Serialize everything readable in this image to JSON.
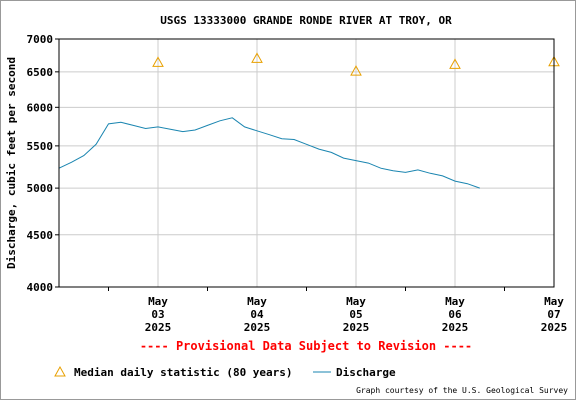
{
  "chart_data": {
    "type": "line",
    "title": "USGS 13333000 GRANDE RONDE RIVER AT TROY, OR",
    "ylabel": "Discharge, cubic feet per second",
    "y_scale": "log",
    "ylim": [
      4000,
      7000
    ],
    "y_ticks": [
      4000,
      4500,
      5000,
      5500,
      6000,
      6500,
      7000
    ],
    "xlim": [
      "2025-05-02 12:00",
      "2025-05-07 12:00"
    ],
    "x_ticks": [
      {
        "month": "May",
        "day": "03",
        "year": "2025",
        "x": "2025-05-03"
      },
      {
        "month": "May",
        "day": "04",
        "year": "2025",
        "x": "2025-05-04"
      },
      {
        "month": "May",
        "day": "05",
        "year": "2025",
        "x": "2025-05-05"
      },
      {
        "month": "May",
        "day": "06",
        "year": "2025",
        "x": "2025-05-06"
      },
      {
        "month": "May",
        "day": "07",
        "year": "2025",
        "x": "2025-05-07"
      }
    ],
    "grid": true,
    "colors": {
      "discharge": "#1a85b0",
      "median": "#e8a000",
      "provisional": "#ff0000"
    },
    "series": [
      {
        "name": "Discharge",
        "type": "line",
        "x": [
          "2025-05-02 12:00",
          "2025-05-02 15:00",
          "2025-05-02 18:00",
          "2025-05-02 21:00",
          "2025-05-03 00:00",
          "2025-05-03 03:00",
          "2025-05-03 06:00",
          "2025-05-03 09:00",
          "2025-05-03 12:00",
          "2025-05-03 15:00",
          "2025-05-03 18:00",
          "2025-05-03 21:00",
          "2025-05-04 00:00",
          "2025-05-04 03:00",
          "2025-05-04 06:00",
          "2025-05-04 09:00",
          "2025-05-04 12:00",
          "2025-05-04 15:00",
          "2025-05-04 18:00",
          "2025-05-04 21:00",
          "2025-05-05 00:00",
          "2025-05-05 03:00",
          "2025-05-05 06:00",
          "2025-05-05 09:00",
          "2025-05-05 12:00",
          "2025-05-05 15:00",
          "2025-05-05 18:00",
          "2025-05-05 21:00",
          "2025-05-06 00:00",
          "2025-05-06 03:00",
          "2025-05-06 06:00",
          "2025-05-06 09:00",
          "2025-05-06 12:00",
          "2025-05-06 15:00",
          "2025-05-06 18:00"
        ],
        "y": [
          5230,
          5300,
          5380,
          5520,
          5780,
          5800,
          5760,
          5720,
          5740,
          5710,
          5680,
          5700,
          5760,
          5820,
          5860,
          5740,
          5690,
          5640,
          5590,
          5580,
          5520,
          5460,
          5420,
          5350,
          5320,
          5290,
          5230,
          5200,
          5180,
          5210,
          5170,
          5140,
          5080,
          5050,
          5000
        ]
      },
      {
        "name": "Median daily statistic (80 years)",
        "type": "scatter",
        "x": [
          "2025-05-03",
          "2025-05-04",
          "2025-05-05",
          "2025-05-06",
          "2025-05-07"
        ],
        "y": [
          6640,
          6700,
          6510,
          6610,
          6650
        ]
      }
    ],
    "provisional_note": "---- Provisional Data Subject to Revision ----",
    "legend": {
      "median_label": "Median daily statistic (80 years)",
      "discharge_label": "Discharge",
      "placement": "bottom"
    },
    "credit": "Graph courtesy of the U.S. Geological Survey"
  }
}
